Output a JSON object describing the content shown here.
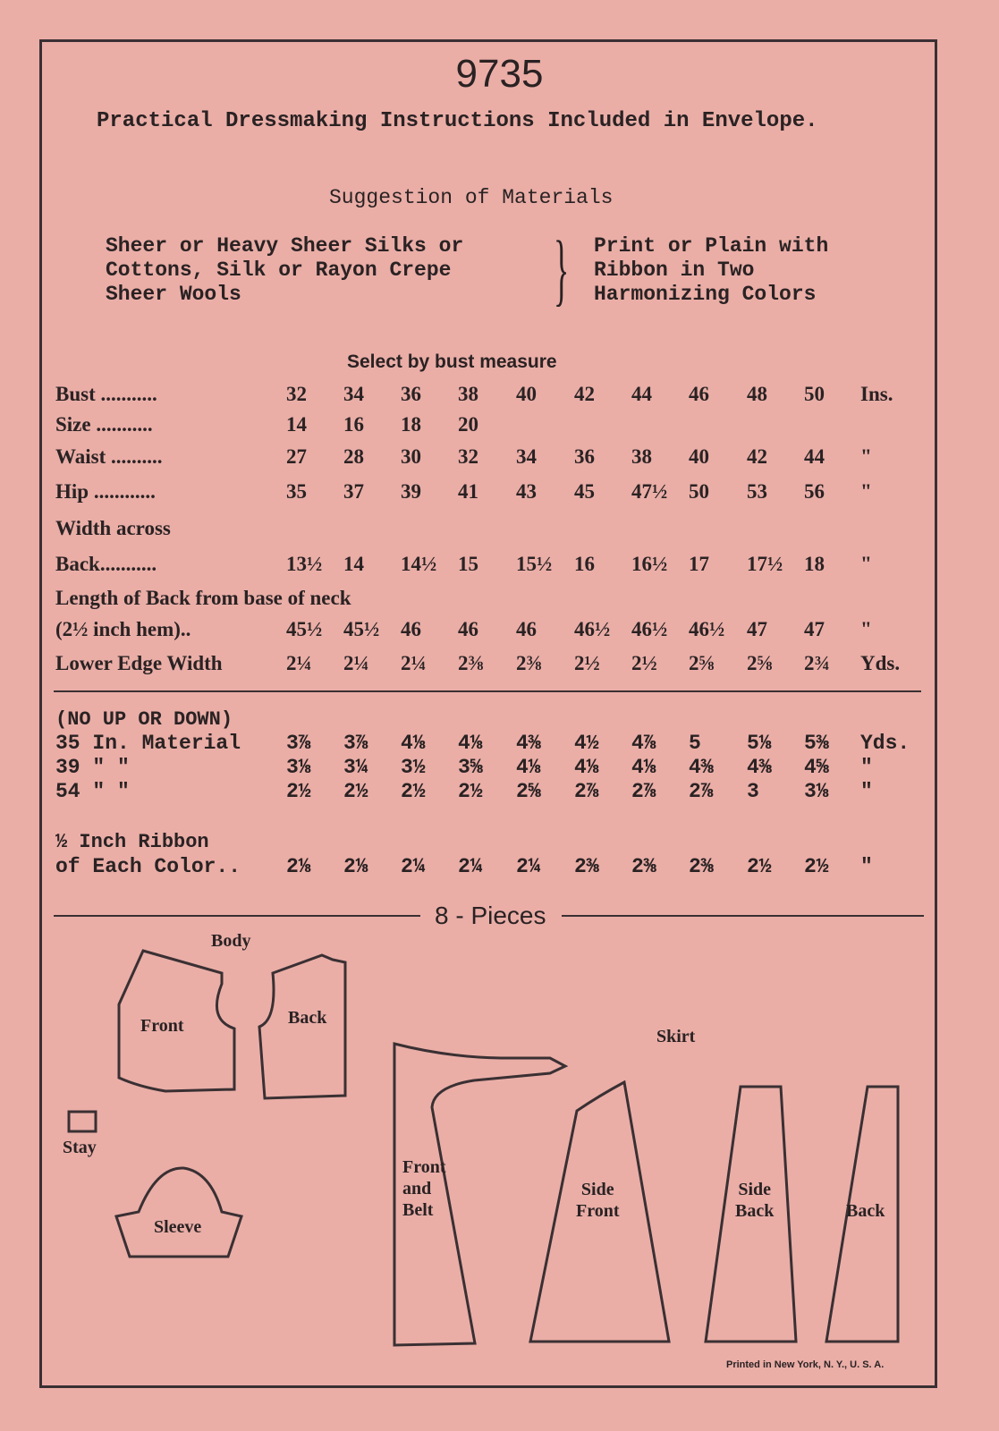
{
  "pattern_number": "9735",
  "instructions_note": "Practical Dressmaking Instructions Included in Envelope.",
  "materials": {
    "heading": "Suggestion of Materials",
    "left_lines": [
      "Sheer or Heavy Sheer Silks or",
      "Cottons, Silk or Rayon Crepe",
      "Sheer Wools"
    ],
    "right_lines": [
      "Print or Plain with",
      "Ribbon in Two",
      "Harmonizing Colors"
    ]
  },
  "measurements": {
    "heading": "Select by bust measure",
    "rows": [
      {
        "label": "Bust ...........",
        "values": [
          "32",
          "34",
          "36",
          "38",
          "40",
          "42",
          "44",
          "46",
          "48",
          "50"
        ],
        "unit": "Ins."
      },
      {
        "label": "Size ...........",
        "values": [
          "14",
          "16",
          "18",
          "20",
          "",
          "",
          "",
          "",
          "",
          ""
        ],
        "unit": ""
      },
      {
        "label": "Waist ..........",
        "values": [
          "27",
          "28",
          "30",
          "32",
          "34",
          "36",
          "38",
          "40",
          "42",
          "44"
        ],
        "unit": "\""
      },
      {
        "label": "Hip ............",
        "values": [
          "35",
          "37",
          "39",
          "41",
          "43",
          "45",
          "47½",
          "50",
          "53",
          "56"
        ],
        "unit": "\""
      },
      {
        "label": "Width across",
        "values": [],
        "unit": ""
      },
      {
        "label": "Back...........",
        "values": [
          "13½",
          "14",
          "14½",
          "15",
          "15½",
          "16",
          "16½",
          "17",
          "17½",
          "18"
        ],
        "unit": "\""
      },
      {
        "label": "Length of Back from base of neck",
        "values": [],
        "unit": ""
      },
      {
        "label": "(2½ inch hem)..",
        "values": [
          "45½",
          "45½",
          "46",
          "46",
          "46",
          "46½",
          "46½",
          "46½",
          "47",
          "47"
        ],
        "unit": "\""
      },
      {
        "label": "Lower Edge Width",
        "values": [
          "2¼",
          "2¼",
          "2¼",
          "2⅜",
          "2⅜",
          "2½",
          "2½",
          "2⅝",
          "2⅝",
          "2¾"
        ],
        "unit": "Yds."
      }
    ]
  },
  "yardage": {
    "note": "(NO UP OR DOWN)",
    "rows": [
      {
        "label": "35 In. Material",
        "values": [
          "3⅞",
          "3⅞",
          "4⅛",
          "4⅛",
          "4⅜",
          "4½",
          "4⅞",
          "5",
          "5⅛",
          "5⅜"
        ],
        "unit": "Yds."
      },
      {
        "label": "39  \"      \"",
        "values": [
          "3⅛",
          "3¼",
          "3½",
          "3⅝",
          "4⅛",
          "4⅛",
          "4⅛",
          "4⅜",
          "4⅜",
          "4⅝"
        ],
        "unit": "\""
      },
      {
        "label": "54  \"      \"",
        "values": [
          "2½",
          "2½",
          "2½",
          "2½",
          "2⅝",
          "2⅞",
          "2⅞",
          "2⅞",
          "3",
          "3⅛"
        ],
        "unit": "\""
      }
    ],
    "ribbon_line1": "½ Inch Ribbon",
    "ribbon": {
      "label": "of Each Color..",
      "values": [
        "2⅛",
        "2⅛",
        "2¼",
        "2¼",
        "2¼",
        "2⅜",
        "2⅜",
        "2⅜",
        "2½",
        "2½"
      ],
      "unit": "\""
    }
  },
  "pieces": {
    "heading": "8 - Pieces",
    "body_label": "Body",
    "skirt_label": "Skirt",
    "front": "Front",
    "back": "Back",
    "stay": "Stay",
    "sleeve": "Sleeve",
    "front_and_belt": [
      "Front",
      "and",
      "Belt"
    ],
    "side_front": [
      "Side",
      "Front"
    ],
    "side_back": [
      "Side",
      "Back"
    ],
    "skirt_back": "Back"
  },
  "footer": "Printed in New York, N. Y., U. S. A."
}
